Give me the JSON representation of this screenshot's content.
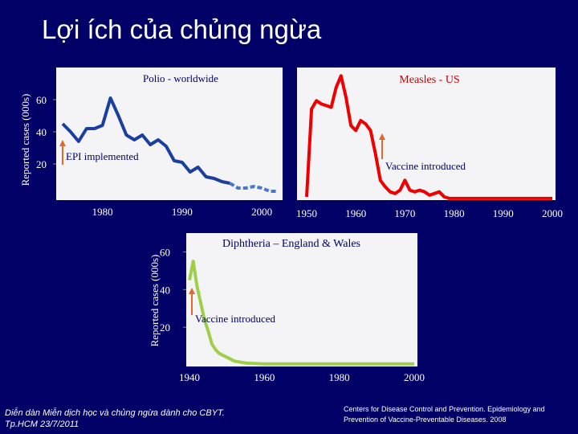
{
  "slide": {
    "title": "Lợi ích của chủng ngừa",
    "footer_left": [
      "Diễn dàn Miễn dịch học và chủng ngừa dành cho CBYT.",
      "Tp.HCM 23/7/2011"
    ],
    "footer_right": "Centers for Disease Control and Prevention. Epidemiology and Prevention of Vaccine-Preventable Diseases. 2008"
  },
  "chart_data": [
    {
      "type": "line",
      "title": "Polio - worldwide",
      "ylabel": "Reported cases (000s)",
      "ylim": [
        0,
        80
      ],
      "xlim": [
        1975,
        2002
      ],
      "yticks": [
        20,
        40,
        60
      ],
      "xticks": [
        1980,
        1990,
        2000
      ],
      "series": [
        {
          "color": "#4a78c8",
          "x": [
            1975,
            1976,
            1977,
            1978,
            1979,
            1980,
            1981,
            1982,
            1983,
            1984,
            1985,
            1986,
            1987,
            1988,
            1989,
            1990,
            1991,
            1992,
            1993,
            1994,
            1995,
            1996,
            1997,
            1998,
            1999,
            2000,
            2001,
            2002
          ],
          "y": [
            45,
            40,
            34,
            42,
            42,
            44,
            61,
            50,
            38,
            35,
            38,
            32,
            35,
            31,
            22,
            21,
            15,
            18,
            12,
            11,
            9,
            8,
            5,
            5,
            6,
            5,
            3,
            3
          ]
        }
      ],
      "annotations": [
        {
          "text": "EPI implemented",
          "x": 1979,
          "y": 32
        }
      ],
      "grid": false
    },
    {
      "type": "line",
      "title": "Measles - US",
      "ylim": [
        0,
        80
      ],
      "xlim": [
        1950,
        2000
      ],
      "xticks": [
        1950,
        1960,
        1970,
        1980,
        1990,
        2000
      ],
      "series": [
        {
          "color": "#ee0000",
          "x": [
            1950,
            1951,
            1952,
            1953,
            1954,
            1955,
            1956,
            1957,
            1958,
            1959,
            1960,
            1961,
            1962,
            1963,
            1964,
            1965,
            1966,
            1967,
            1968,
            1969,
            1970,
            1971,
            1972,
            1973,
            1974,
            1975,
            1976,
            1977,
            1978,
            1979,
            1980,
            1985,
            1990,
            1995,
            2000
          ],
          "y": [
            2,
            55,
            60,
            58,
            57,
            56,
            68,
            75,
            62,
            45,
            42,
            48,
            46,
            42,
            28,
            12,
            8,
            5,
            4,
            6,
            12,
            6,
            5,
            6,
            5,
            3,
            4,
            5,
            2,
            1,
            1,
            1,
            1,
            1,
            1
          ]
        }
      ],
      "annotations": [
        {
          "text": "Vaccine introduced",
          "x": 1963,
          "y": 42
        }
      ],
      "grid": false
    },
    {
      "type": "line",
      "title": "Diphtheria – England & Wales",
      "ylabel": "Reported cases (000s)",
      "ylim": [
        0,
        70
      ],
      "xlim": [
        1940,
        2000
      ],
      "yticks": [
        20,
        40,
        60
      ],
      "xticks": [
        1940,
        1960,
        1980,
        2000
      ],
      "series": [
        {
          "color": "#9fcf4a",
          "x": [
            1940,
            1941,
            1942,
            1943,
            1944,
            1945,
            1946,
            1947,
            1948,
            1950,
            1952,
            1955,
            1960,
            1970,
            1980,
            1990,
            2000
          ],
          "y": [
            45,
            55,
            42,
            33,
            24,
            18,
            11,
            8,
            6,
            4,
            2,
            1,
            0.5,
            0.5,
            0.5,
            0.5,
            0.5
          ]
        }
      ],
      "annotations": [
        {
          "text": "Vaccine introduced",
          "x": 1941,
          "y": 50
        }
      ],
      "grid": false
    }
  ]
}
